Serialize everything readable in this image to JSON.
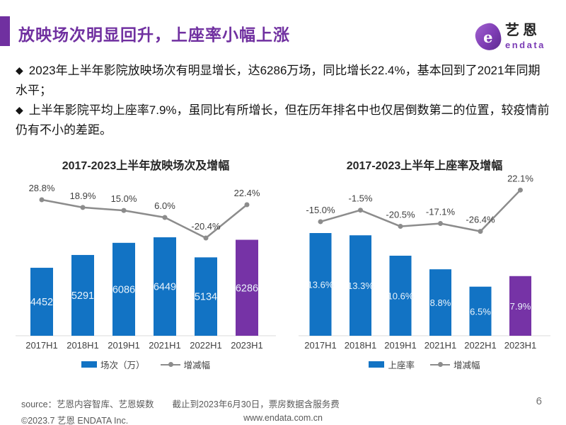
{
  "slide": {
    "title": "放映场次明显回升，上座率小幅上涨",
    "page_number": "6",
    "accent_color": "#7030A0"
  },
  "logo": {
    "glyph": "e",
    "brand_cn": "艺恩",
    "brand_en": "endata"
  },
  "bullets": {
    "marker": "◆",
    "items": [
      "2023年上半年影院放映场次有明显增长，达6286万场，同比增长22.4%，基本回到了2021年同期水平；",
      "上半年影院平均上座率7.9%，虽同比有所增长，但在历年排名中也仅居倒数第二的位置，较疫情前仍有不小的差距。"
    ]
  },
  "chart_data": [
    {
      "type": "bar+line",
      "title": "2017-2023上半年放映场次及增幅",
      "categories": [
        "2017H1",
        "2018H1",
        "2019H1",
        "2021H1",
        "2022H1",
        "2023H1"
      ],
      "series": [
        {
          "name": "场次（万）",
          "type": "bar",
          "values": [
            4452,
            5291,
            6086,
            6449,
            5134,
            6286
          ],
          "labels": [
            "4452",
            "5291",
            "6086",
            "6449",
            "5134",
            "6286"
          ]
        },
        {
          "name": "增减幅",
          "type": "line",
          "values": [
            28.8,
            18.9,
            15.0,
            6.0,
            -20.4,
            22.4
          ],
          "labels": [
            "28.8%",
            "18.9%",
            "15.0%",
            "6.0%",
            "-20.4%",
            "22.4%"
          ]
        }
      ],
      "highlight_index": 5,
      "legend_position": "bottom",
      "grid": false,
      "colors": {
        "bar": "#1273C4",
        "bar_highlight": "#7633A6",
        "line": "#8C8C8C",
        "bar_label": "#E9F3FB"
      }
    },
    {
      "type": "bar+line",
      "title": "2017-2023上半年上座率及增幅",
      "categories": [
        "2017H1",
        "2018H1",
        "2019H1",
        "2021H1",
        "2022H1",
        "2023H1"
      ],
      "series": [
        {
          "name": "上座率",
          "type": "bar",
          "values": [
            13.6,
            13.3,
            10.6,
            8.8,
            6.5,
            7.9
          ],
          "labels": [
            "13.6%",
            "13.3%",
            "10.6%",
            "8.8%",
            "6.5%",
            "7.9%"
          ]
        },
        {
          "name": "增减幅",
          "type": "line",
          "values": [
            -15.0,
            -1.5,
            -20.5,
            -17.1,
            -26.4,
            22.1
          ],
          "labels": [
            "-15.0%",
            "-1.5%",
            "-20.5%",
            "-17.1%",
            "-26.4%",
            "22.1%"
          ]
        }
      ],
      "highlight_index": 5,
      "legend_position": "bottom",
      "grid": false,
      "colors": {
        "bar": "#1273C4",
        "bar_highlight": "#7633A6",
        "line": "#8C8C8C",
        "bar_label": "#E9F3FB"
      }
    }
  ],
  "footer": {
    "source_left": "source：艺恩内容智库、艺恩娱数",
    "source_right": "截止到2023年6月30日，票房数据含服务费",
    "copyright": "©2023.7 艺恩 ENDATA Inc.",
    "website": "www.endata.com.cn"
  }
}
